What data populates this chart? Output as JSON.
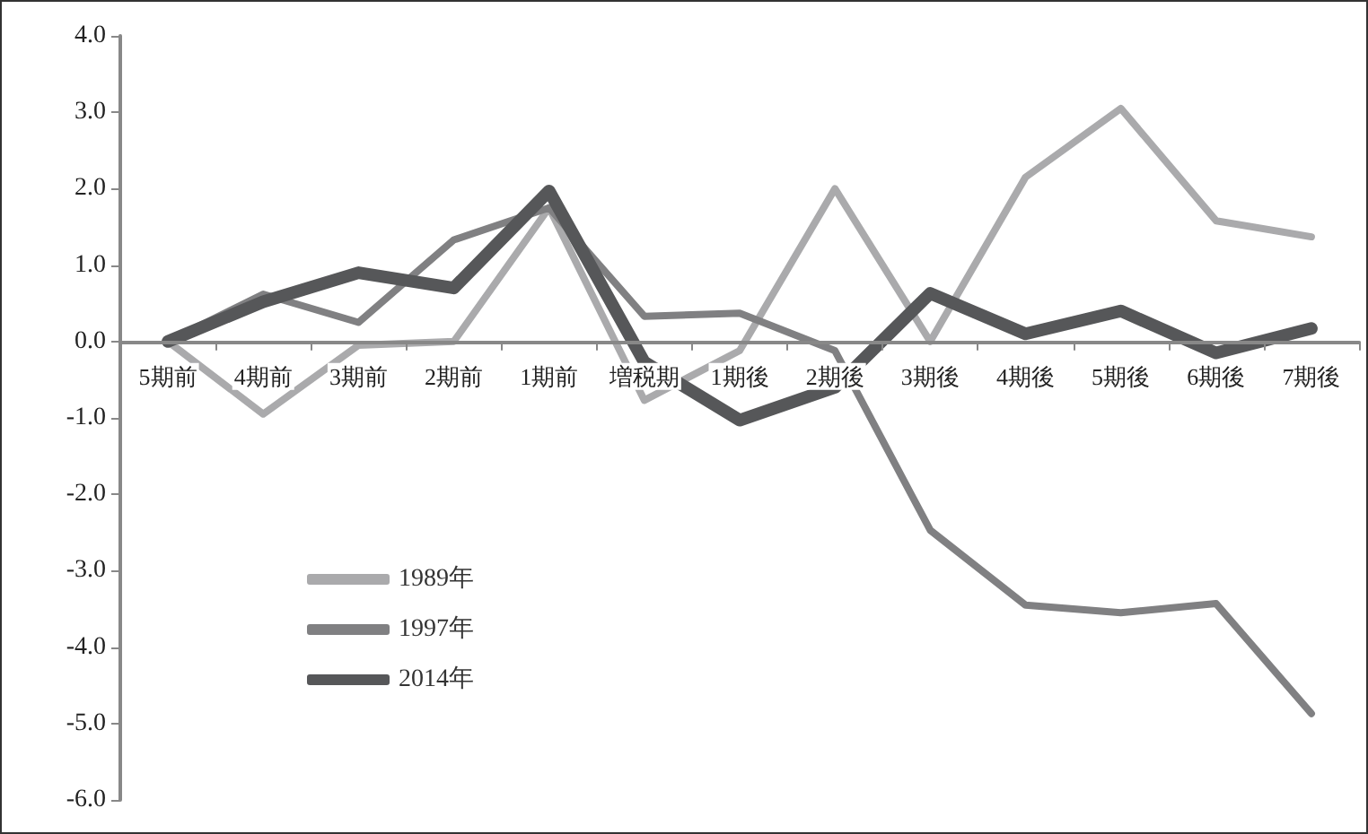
{
  "chart_data": {
    "type": "line",
    "categories": [
      "5期前",
      "4期前",
      "3期前",
      "2期前",
      "1期前",
      "増税期",
      "1期後",
      "2期後",
      "3期後",
      "4期後",
      "5期後",
      "6期後",
      "7期後"
    ],
    "series": [
      {
        "name": "1989年",
        "color": "#aaaaac",
        "values": [
          0,
          -0.95,
          -0.05,
          0.0,
          1.75,
          -0.77,
          -0.12,
          2.0,
          0.0,
          2.15,
          3.05,
          1.58,
          1.37
        ]
      },
      {
        "name": "1997年",
        "color": "#808082",
        "values": [
          0,
          0.62,
          0.25,
          1.33,
          1.75,
          0.33,
          0.37,
          -0.12,
          -2.47,
          -3.45,
          -3.55,
          -3.43,
          -4.87
        ]
      },
      {
        "name": "2014年",
        "color": "#565759",
        "values": [
          0,
          0.52,
          0.9,
          0.7,
          1.97,
          -0.27,
          -1.03,
          -0.6,
          0.63,
          0.1,
          0.4,
          -0.15,
          0.17
        ]
      }
    ],
    "ylim": [
      -6,
      4
    ],
    "yticks": [
      {
        "value": -6,
        "label": "-6.0"
      },
      {
        "value": -5,
        "label": "-5.0"
      },
      {
        "value": -4,
        "label": "-4.0"
      },
      {
        "value": -3,
        "label": "-3.0"
      },
      {
        "value": -2,
        "label": "-2.0"
      },
      {
        "value": -1,
        "label": "-1.0"
      },
      {
        "value": 0,
        "label": "0.0"
      },
      {
        "value": 1,
        "label": "1.0"
      },
      {
        "value": 2,
        "label": "2.0"
      },
      {
        "value": 3,
        "label": "3.0"
      },
      {
        "value": 4,
        "label": "4.0"
      }
    ],
    "grid": false,
    "legend": "bottom left",
    "marker": "none",
    "line_style": "solid"
  }
}
